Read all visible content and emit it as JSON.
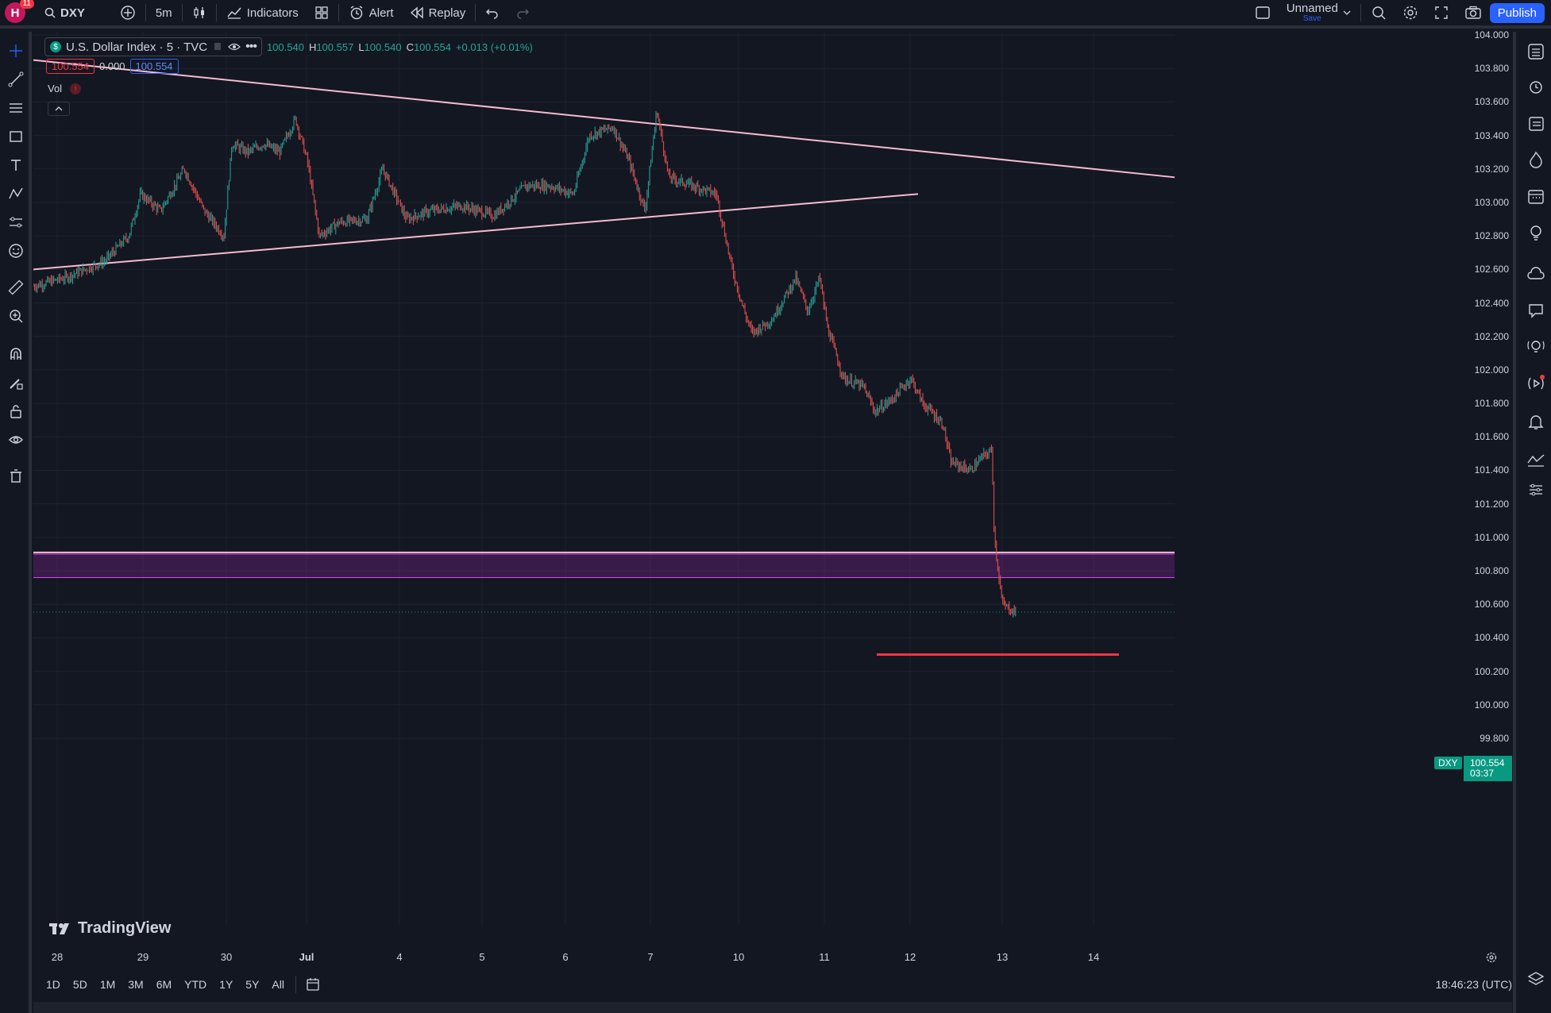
{
  "topbar": {
    "avatar_letter": "H",
    "notifications": "11",
    "symbol": "DXY",
    "interval": "5m",
    "indicators_label": "Indicators",
    "alert_label": "Alert",
    "replay_label": "Replay",
    "layout_name": "Unnamed",
    "save_label": "Save",
    "publish_label": "Publish"
  },
  "legend": {
    "title": "U.S. Dollar Index · 5 · TVC",
    "symbol_badge": "$",
    "open_value": "100.540",
    "h_label": "H",
    "high": "100.557",
    "l_label": "L",
    "low": "100.540",
    "c_label": "C",
    "close": "100.554",
    "change": "+0.013 (+0.01%)",
    "bid": "100.554",
    "spread": "0.000",
    "ask": "100.554",
    "vol_label": "Vol"
  },
  "price_axis": {
    "ticks": [
      "104.000",
      "103.800",
      "103.600",
      "103.400",
      "103.200",
      "103.000",
      "102.800",
      "102.600",
      "102.400",
      "102.200",
      "102.000",
      "101.800",
      "101.600",
      "101.400",
      "101.200",
      "101.000",
      "100.800",
      "100.600",
      "100.400",
      "100.200",
      "100.000",
      "99.800"
    ],
    "last_price": "100.554",
    "countdown": "03:37",
    "symbol_tag": "DXY"
  },
  "time_axis": {
    "ticks": [
      "28",
      "29",
      "30",
      "Jul",
      "4",
      "5",
      "6",
      "7",
      "10",
      "11",
      "12",
      "13",
      "14"
    ]
  },
  "bottombar": {
    "ranges": [
      "1D",
      "5D",
      "1M",
      "3M",
      "6M",
      "YTD",
      "1Y",
      "5Y",
      "All"
    ],
    "clock": "18:46:23 (UTC)"
  },
  "watermark": "TradingView",
  "colors": {
    "background": "#131722",
    "up": "#26a69a",
    "down": "#ef5350",
    "trendline": "#f8bbd0",
    "zone": "#9c27b0",
    "target_line": "#f23645",
    "accent": "#2962ff"
  },
  "chart_data": {
    "type": "candlestick",
    "symbol": "DXY",
    "interval": "5",
    "ylim": [
      99.7,
      104.05
    ],
    "price_path": [
      [
        0,
        102.5
      ],
      [
        40,
        102.55
      ],
      [
        90,
        102.65
      ],
      [
        120,
        102.8
      ],
      [
        135,
        103.05
      ],
      [
        160,
        102.95
      ],
      [
        190,
        103.2
      ],
      [
        215,
        102.95
      ],
      [
        240,
        102.8
      ],
      [
        250,
        103.35
      ],
      [
        270,
        103.3
      ],
      [
        290,
        103.35
      ],
      [
        310,
        103.3
      ],
      [
        330,
        103.5
      ],
      [
        345,
        103.25
      ],
      [
        360,
        102.8
      ],
      [
        385,
        102.88
      ],
      [
        420,
        102.9
      ],
      [
        440,
        103.2
      ],
      [
        470,
        102.9
      ],
      [
        500,
        102.95
      ],
      [
        540,
        102.98
      ],
      [
        580,
        102.92
      ],
      [
        620,
        103.1
      ],
      [
        650,
        103.1
      ],
      [
        680,
        103.05
      ],
      [
        700,
        103.4
      ],
      [
        730,
        103.45
      ],
      [
        750,
        103.25
      ],
      [
        770,
        102.95
      ],
      [
        785,
        103.55
      ],
      [
        800,
        103.15
      ],
      [
        830,
        103.1
      ],
      [
        860,
        103.05
      ],
      [
        880,
        102.6
      ],
      [
        895,
        102.35
      ],
      [
        905,
        102.22
      ],
      [
        930,
        102.3
      ],
      [
        960,
        102.55
      ],
      [
        975,
        102.35
      ],
      [
        990,
        102.55
      ],
      [
        1000,
        102.25
      ],
      [
        1020,
        101.95
      ],
      [
        1045,
        101.9
      ],
      [
        1060,
        101.75
      ],
      [
        1080,
        101.82
      ],
      [
        1105,
        101.95
      ],
      [
        1120,
        101.8
      ],
      [
        1145,
        101.68
      ],
      [
        1155,
        101.45
      ],
      [
        1180,
        101.4
      ],
      [
        1195,
        101.48
      ],
      [
        1207,
        101.52
      ],
      [
        1210,
        101.0
      ],
      [
        1220,
        100.6
      ],
      [
        1237,
        100.55
      ]
    ],
    "drawings": {
      "upper_trendline": [
        [
          "28",
          103.85
        ],
        [
          "14+",
          103.15
        ]
      ],
      "lower_trendline": [
        [
          "28",
          102.6
        ],
        [
          "12",
          103.05
        ]
      ],
      "horizontal_line": 100.91,
      "zone": [
        100.76,
        100.9
      ],
      "target_line": 100.3
    }
  }
}
